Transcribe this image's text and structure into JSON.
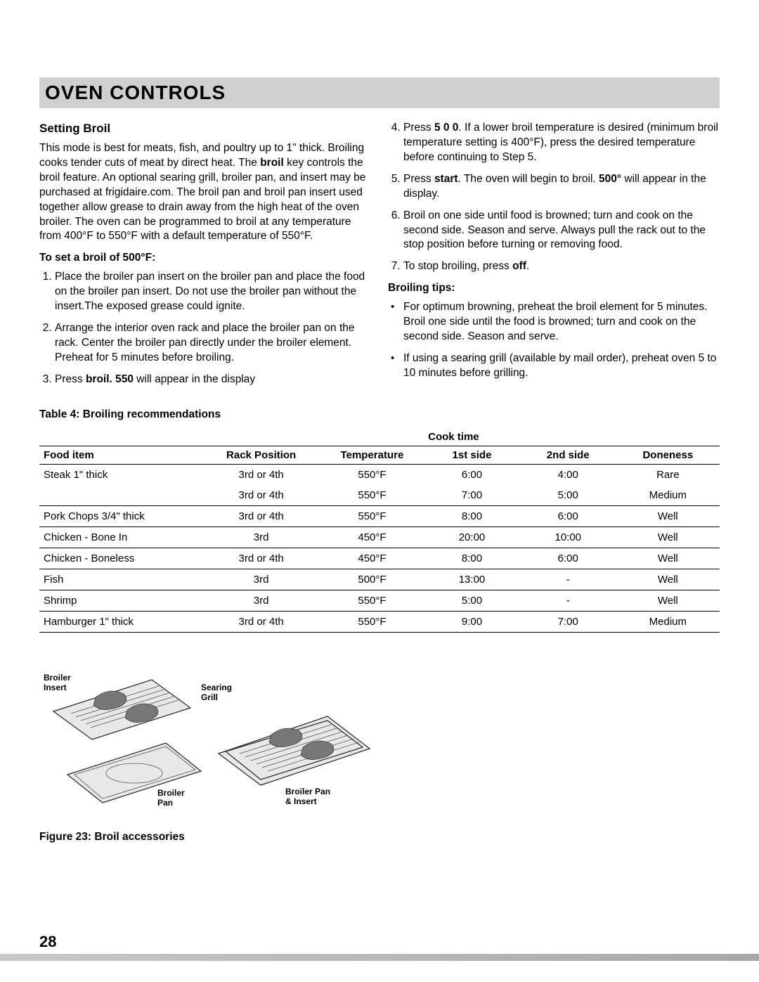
{
  "banner": {
    "title": "OVEN CONTROLS"
  },
  "section": {
    "heading": "Setting Broil",
    "intro_pre": "This mode is best for meats, fish, and poultry up to 1\" thick. Broiling cooks tender cuts of meat by direct heat. The ",
    "intro_bold": "broil",
    "intro_post": " key controls the broil feature. An optional searing grill, broiler pan, and insert may be purchased at frigidaire.com. The broil pan and broil pan insert used together allow grease to drain away from the high heat of the oven broiler. The oven can be programmed to broil at any temperature from 400°F to 550°F with a default temperature of 550°F.",
    "set_head": "To set a broil of 500°F:",
    "step1": "Place the broiler pan insert on the broiler pan and place the food on the broiler pan insert. Do not use the broiler pan without the insert.The exposed grease could ignite.",
    "step2": "Arrange the interior oven rack and place the broiler pan on the rack. Center the broiler pan directly under the broiler element. Preheat for 5 minutes before broiling.",
    "step3_a": "Press ",
    "step3_b": "broil. 550",
    "step3_c": " will appear in the display",
    "step4_a": "Press ",
    "step4_b": "5 0 0",
    "step4_c": ". If a lower broil temperature is desired (minimum broil temperature setting is 400°F), press the desired temperature before continuing to Step 5.",
    "step5_a": "Press ",
    "step5_b": "start",
    "step5_c": ". The oven will begin to broil. ",
    "step5_d": "500°",
    "step5_e": " will appear in the display.",
    "step6": "Broil on one side until food is browned; turn and cook on the second side. Season and serve. Always pull the rack out to the stop position before turning or removing food.",
    "step7_a": "To stop broiling, press ",
    "step7_b": "off",
    "step7_c": ".",
    "tips_head": "Broiling tips:",
    "tip1": "For optimum browning, preheat the broil element for 5 minutes. Broil one side until the food is browned; turn and cook on the second side. Season and serve.",
    "tip2": "If using a searing grill (available by mail order), preheat oven 5 to 10 minutes before grilling."
  },
  "table": {
    "caption": "Table 4:   Broiling recommendations",
    "columns": {
      "food": "Food item",
      "rack": "Rack Position",
      "temp": "Temperature",
      "cook": "Cook time",
      "side1": "1st side",
      "side2": "2nd side",
      "done": "Doneness"
    },
    "rows": [
      {
        "food": "Steak 1\" thick",
        "rack": "3rd or 4th",
        "temp": "550°F",
        "s1": "6:00",
        "s2": "4:00",
        "done": "Rare",
        "br": false
      },
      {
        "food": "",
        "rack": "3rd or 4th",
        "temp": "550°F",
        "s1": "7:00",
        "s2": "5:00",
        "done": "Medium",
        "br": true
      },
      {
        "food": "Pork Chops 3/4\" thick",
        "rack": "3rd or 4th",
        "temp": "550°F",
        "s1": "8:00",
        "s2": "6:00",
        "done": "Well",
        "br": true
      },
      {
        "food": "Chicken - Bone In",
        "rack": "3rd",
        "temp": "450°F",
        "s1": "20:00",
        "s2": "10:00",
        "done": "Well",
        "br": true
      },
      {
        "food": "Chicken - Boneless",
        "rack": "3rd or 4th",
        "temp": "450°F",
        "s1": "8:00",
        "s2": "6:00",
        "done": "Well",
        "br": true
      },
      {
        "food": "Fish",
        "rack": "3rd",
        "temp": "500°F",
        "s1": "13:00",
        "s2": "-",
        "done": "Well",
        "br": true
      },
      {
        "food": "Shrimp",
        "rack": "3rd",
        "temp": "550°F",
        "s1": "5:00",
        "s2": "-",
        "done": "Well",
        "br": true
      },
      {
        "food": "Hamburger 1\" thick",
        "rack": "3rd or 4th",
        "temp": "550°F",
        "s1": "9:00",
        "s2": "7:00",
        "done": "Medium",
        "br": true
      }
    ],
    "header_bg": "#ffffff",
    "border_color": "#000000",
    "font_size": 15
  },
  "figure": {
    "caption": "Figure 23:  Broil accessories",
    "labels": {
      "insert": "Broiler\nInsert",
      "pan": "Broiler\nPan",
      "grill": "Searing\nGrill",
      "pan_insert": "Broiler Pan\n& Insert"
    }
  },
  "page_number": "28"
}
